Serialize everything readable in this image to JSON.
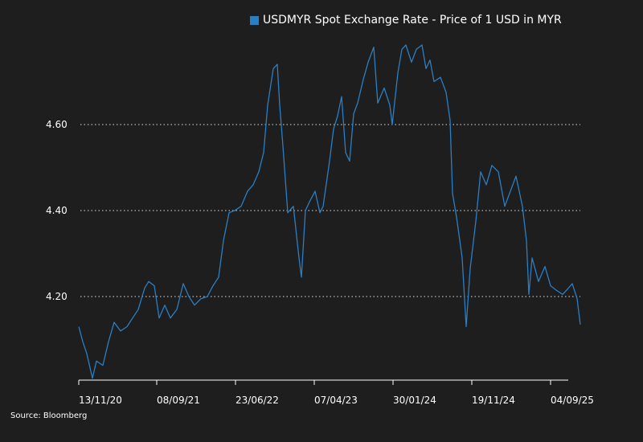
{
  "chart_data": {
    "type": "line",
    "title": "",
    "xlabel": "",
    "ylabel": "",
    "legend": {
      "position": "top-center",
      "entries": [
        "USDMYR Spot Exchange Rate - Price of 1 USD in MYR"
      ]
    },
    "x_unit": "approx. days since 13/11/20",
    "xlim": [
      0,
      1872
    ],
    "ylim": [
      3.98,
      4.82
    ],
    "grid": "horizontal dotted",
    "y_ticks": [
      {
        "value": 4.2,
        "label": "4.20"
      },
      {
        "value": 4.4,
        "label": "4.40"
      },
      {
        "value": 4.6,
        "label": "4.60"
      }
    ],
    "x_ticks": [
      {
        "value": 0,
        "label": "13/11/20"
      },
      {
        "value": 291,
        "label": "08/09/21"
      },
      {
        "value": 585,
        "label": "23/06/22"
      },
      {
        "value": 879,
        "label": "07/04/23"
      },
      {
        "value": 1173,
        "label": "30/01/24"
      },
      {
        "value": 1467,
        "label": "19/11/24"
      },
      {
        "value": 1761,
        "label": "04/09/25"
      }
    ],
    "series": [
      {
        "name": "USDMYR Spot Exchange Rate - Price of 1 USD in MYR",
        "color": "#2a7fc4",
        "x": [
          0,
          15,
          30,
          51,
          66,
          90,
          111,
          132,
          156,
          180,
          201,
          222,
          246,
          261,
          282,
          300,
          321,
          342,
          366,
          390,
          411,
          432,
          456,
          480,
          501,
          522,
          540,
          561,
          582,
          606,
          630,
          651,
          672,
          690,
          705,
          726,
          741,
          750,
          762,
          780,
          801,
          822,
          831,
          846,
          861,
          882,
          900,
          912,
          936,
          951,
          966,
          981,
          996,
          1011,
          1026,
          1041,
          1062,
          1080,
          1101,
          1116,
          1140,
          1161,
          1170,
          1191,
          1206,
          1221,
          1242,
          1260,
          1281,
          1296,
          1311,
          1326,
          1350,
          1371,
          1386,
          1395,
          1410,
          1431,
          1446,
          1461,
          1482,
          1500,
          1521,
          1542,
          1566,
          1590,
          1611,
          1632,
          1656,
          1671,
          1680,
          1692,
          1716,
          1740,
          1761,
          1782,
          1806,
          1821,
          1842,
          1860,
          1872
        ],
        "values": [
          4.13,
          4.095,
          4.067,
          4.01,
          4.05,
          4.04,
          4.095,
          4.14,
          4.12,
          4.13,
          4.15,
          4.17,
          4.22,
          4.235,
          4.225,
          4.15,
          4.18,
          4.15,
          4.17,
          4.23,
          4.2,
          4.18,
          4.195,
          4.2,
          4.225,
          4.245,
          4.33,
          4.395,
          4.4,
          4.41,
          4.445,
          4.46,
          4.49,
          4.535,
          4.645,
          4.73,
          4.74,
          4.645,
          4.55,
          4.395,
          4.41,
          4.29,
          4.245,
          4.4,
          4.42,
          4.445,
          4.395,
          4.41,
          4.515,
          4.59,
          4.62,
          4.665,
          4.535,
          4.515,
          4.625,
          4.65,
          4.705,
          4.745,
          4.78,
          4.65,
          4.685,
          4.645,
          4.6,
          4.72,
          4.775,
          4.785,
          4.745,
          4.775,
          4.785,
          4.73,
          4.75,
          4.7,
          4.71,
          4.675,
          4.61,
          4.44,
          4.385,
          4.29,
          4.13,
          4.265,
          4.375,
          4.49,
          4.46,
          4.505,
          4.49,
          4.41,
          4.445,
          4.48,
          4.41,
          4.33,
          4.205,
          4.29,
          4.235,
          4.27,
          4.225,
          4.215,
          4.205,
          4.215,
          4.23,
          4.195,
          4.135
        ]
      }
    ]
  },
  "source": "Source: Bloomberg"
}
